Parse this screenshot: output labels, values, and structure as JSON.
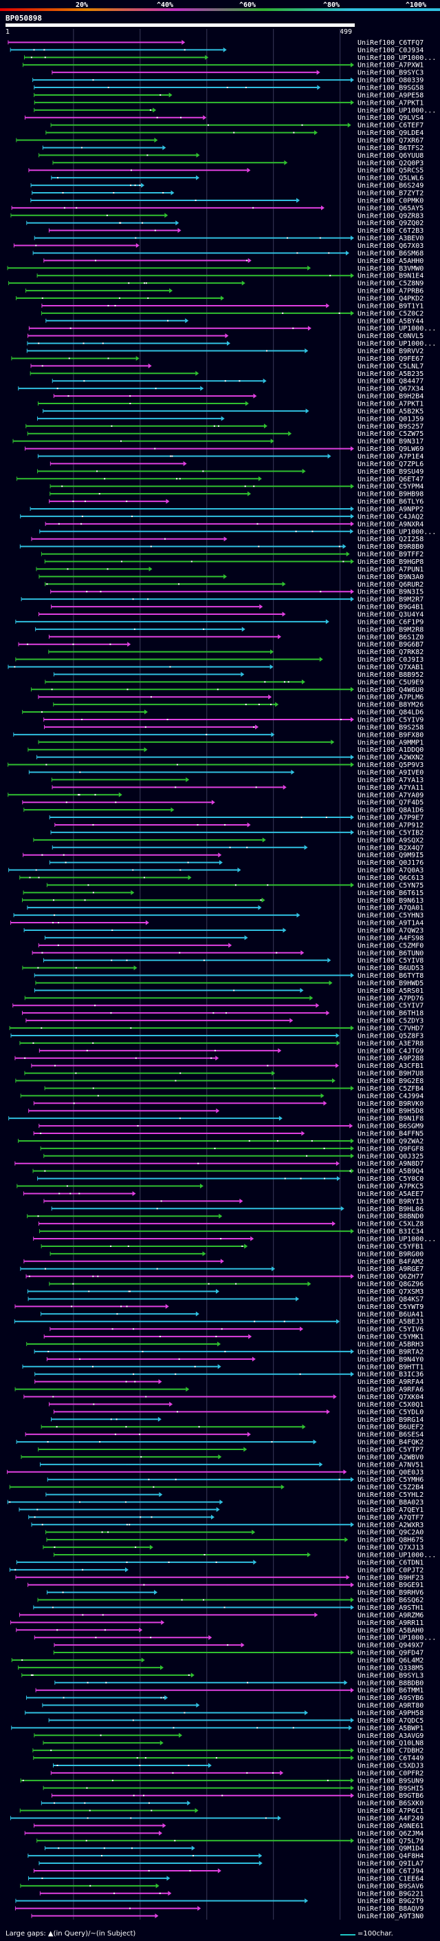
{
  "chart_data": {
    "type": "alignment-overview",
    "title": "BP050898",
    "query_start": 1,
    "query_end": 499,
    "colorbar_ticks": [
      "20%",
      "^40%",
      "^60%",
      "^80%",
      "^100%"
    ],
    "colors": {
      "background": "#000018",
      "pink": "#e040e0",
      "green": "#30c030",
      "cyan": "#30c0e0",
      "query_bar": "#ffffff",
      "label": "#ffffff"
    },
    "labels": [
      "UniRef100_C6TFQ7",
      "UniRef100_C0J934",
      "UniRef100_UP1000...",
      "UniRef100_A7PXW1",
      "UniRef100_B9SYC3",
      "UniRef100_O80339",
      "UniRef100_B9SG58",
      "UniRef100_A9PE58",
      "UniRef100_A7PKT1",
      "UniRef100_UP1000...",
      "UniRef100_Q9LVS4",
      "UniRef100_C6TEF7",
      "UniRef100_Q9LDE4",
      "UniRef100_Q7XR67",
      "UniRef100_B6TFS2",
      "UniRef100_Q6YUU8",
      "UniRef100_Q2Q0P3",
      "UniRef100_Q5RCS5",
      "UniRef100_Q5LWL6",
      "UniRef100_B6S249",
      "UniRef100_B7ZYT2",
      "UniRef100_C0PMK0",
      "UniRef100_Q65AY5",
      "UniRef100_Q9ZR83",
      "UniRef100_Q9ZQ02",
      "UniRef100_C6T2B3",
      "UniRef100_A3BEV0",
      "UniRef100_Q67X03",
      "UniRef100_B6SM68",
      "UniRef100_A5AHH0",
      "UniRef100_B3VMW0",
      "UniRef100_B9N1E4",
      "UniRef100_C5Z8N9",
      "UniRef100_A7PRB6",
      "UniRef100_Q4PKD2",
      "UniRef100_B9T1Y1",
      "UniRef100_C5Z0C2",
      "UniRef100_A5BY44",
      "UniRef100_UP1000...",
      "UniRef100_C0NVL5",
      "UniRef100_UP1000...",
      "UniRef100_B9RVV2",
      "UniRef100_Q9FE67",
      "UniRef100_C5LNL7",
      "UniRef100_A5B235",
      "UniRef100_Q84477",
      "UniRef100_Q67X34",
      "UniRef100_B9H2B4",
      "UniRef100_A7PKT1",
      "UniRef100_A5B2K5",
      "UniRef100_Q01J59",
      "UniRef100_B9S257",
      "UniRef100_C5ZW75",
      "UniRef100_B9N317",
      "UniRef100_Q9LW69",
      "UniRef100_A7P1E4",
      "UniRef100_Q7ZPL6",
      "UniRef100_B9SU49",
      "UniRef100_Q6ET47",
      "UniRef100_C5YPM4",
      "UniRef100_B9HB98",
      "UniRef100_B6TLY6",
      "UniRef100_A9NPP2",
      "UniRef100_C4JAQ2",
      "UniRef100_A9NXR4",
      "UniRef100_UP1000...",
      "UniRef100_Q2I258",
      "UniRef100_B9R8B0",
      "UniRef100_B9TFF2",
      "UniRef100_B9HGP8",
      "UniRef100_A7PUN1",
      "UniRef100_B9N3A0",
      "UniRef100_Q6RUR2",
      "UniRef100_B9N3I5",
      "UniRef100_B9M2R7",
      "UniRef100_B9G4B1",
      "UniRef100_Q3U4Y4",
      "UniRef100_C6F1P9",
      "UniRef100_B9M2R8",
      "UniRef100_B6S1Z0",
      "UniRef100_B9G6B7",
      "UniRef100_Q7RK82",
      "UniRef100_C0J9I3",
      "UniRef100_Q7XAB1",
      "UniRef100_B8B952",
      "UniRef100_C5U9E9",
      "UniRef100_Q4W6U0",
      "UniRef100_A7PLM6",
      "UniRef100_B8YM26",
      "UniRef100_Q84LD6",
      "UniRef100_C5YIV9",
      "UniRef100_B9S258",
      "UniRef100_B9FX80",
      "UniRef100_A9MMP1",
      "UniRef100_A1DDQ0",
      "UniRef100_A2WXN2",
      "UniRef100_Q5P9V3",
      "UniRef100_A9IVE0",
      "UniRef100_A7YA13",
      "UniRef100_A7YA11",
      "UniRef100_A7YA09",
      "UniRef100_Q7F4D5",
      "UniRef100_Q8A1D6",
      "UniRef100_A7P9E7",
      "UniRef100_A7P912",
      "UniRef100_C5YIB2",
      "UniRef100_A9SQX2",
      "UniRef100_B2X4Q7",
      "UniRef100_Q9M9I5",
      "UniRef100_Q0J176",
      "UniRef100_A7Q0A3",
      "UniRef100_Q6C613",
      "UniRef100_C5YN75",
      "UniRef100_B6T615",
      "UniRef100_B9N613",
      "UniRef100_A7QA01",
      "UniRef100_C5YHN3",
      "UniRef100_A9T1A4",
      "UniRef100_A7QW23",
      "UniRef100_A4FS98",
      "UniRef100_C5ZMF0",
      "UniRef100_B6TUN0",
      "UniRef100_C5YIV8",
      "UniRef100_B6UD53",
      "UniRef100_B6TYT8",
      "UniRef100_B9HWD5",
      "UniRef100_A5RS01",
      "UniRef100_A7PD76",
      "UniRef100_C5YIV7",
      "UniRef100_B6TH18",
      "UniRef100_C5ZDY3",
      "UniRef100_C7VHD7",
      "UniRef100_Q5Z8F3",
      "UniRef100_A3E7R8",
      "UniRef100_C4JTG9",
      "UniRef100_A9P288",
      "UniRef100_A3CFB1",
      "UniRef100_B9H7U8",
      "UniRef100_B9G2E8",
      "UniRef100_C5ZFB4",
      "UniRef100_C4J994",
      "UniRef100_B9RVK0",
      "UniRef100_B9H5D8",
      "UniRef100_B9N1F8",
      "UniRef100_B6SGM9",
      "UniRef100_B4FFN5",
      "UniRef100_Q9ZWA2",
      "UniRef100_Q9FGF8",
      "UniRef100_Q0J325",
      "UniRef100_A9N8D7",
      "UniRef100_A5B9Q4",
      "UniRef100_C5Y0C0",
      "UniRef100_A7PKC5",
      "UniRef100_A5AEE7",
      "UniRef100_B9RYI3",
      "UniRef100_B9HL06",
      "UniRef100_B8BND0",
      "UniRef100_C5XLZ8",
      "UniRef100_B3IC34",
      "UniRef100_UP1000...",
      "UniRef100_C5YFB1",
      "UniRef100_B9RG00",
      "UniRef100_B4FAM2",
      "UniRef100_A9RGE7",
      "UniRef100_Q6ZH77",
      "UniRef100_Q8GZ96",
      "UniRef100_Q7XSM3",
      "UniRef100_Q84KS7",
      "UniRef100_C5YWT9",
      "UniRef100_B6UA41",
      "UniRef100_A5BEJ3",
      "UniRef100_C5YIV6",
      "UniRef100_C5YMK1",
      "UniRef100_A5BRH3",
      "UniRef100_B9RTA2",
      "UniRef100_B9N4Y0",
      "UniRef100_B9HTT1",
      "UniRef100_B3IC36",
      "UniRef100_A9RFA4",
      "UniRef100_A9RFA6",
      "UniRef100_Q7XK04",
      "UniRef100_C5X0Q1",
      "UniRef100_C5YDL0",
      "UniRef100_B9RG14",
      "UniRef100_B6UEF2",
      "UniRef100_B6SES4",
      "UniRef100_B4FQK2",
      "UniRef100_C5YTP7",
      "UniRef100_A2WBV0",
      "UniRef100_A7NV51",
      "UniRef100_Q0E0J3",
      "UniRef100_C5YMH6",
      "UniRef100_C5Z2B4",
      "UniRef100_C5YHL2",
      "UniRef100_B8A023",
      "UniRef100_A7QEY1",
      "UniRef100_A7QTF7",
      "UniRef100_A2WXR3",
      "UniRef100_Q9C2A0",
      "UniRef100_Q8H675",
      "UniRef100_Q7XJ13",
      "UniRef100_UP1000...",
      "UniRef100_C6TDN1",
      "UniRef100_C0PJT2",
      "UniRef100_B9HF23",
      "UniRef100_B9GE91",
      "UniRef100_B9RHV6",
      "UniRef100_B6SQ62",
      "UniRef100_A9STH1",
      "UniRef100_A9RZM6",
      "UniRef100_A9RR11",
      "UniRef100_A5BAH0",
      "UniRef100_UP1000...",
      "UniRef100_Q949X7",
      "UniRef100_Q9FD47",
      "UniRef100_Q6L4M2",
      "UniRef100_Q338M5",
      "UniRef100_B9SYL3",
      "UniRef100_B8BDB0",
      "UniRef100_B6TMM1",
      "UniRef100_A9SYB6",
      "UniRef100_A9RT80",
      "UniRef100_A9PH58",
      "UniRef100_A7QDC5",
      "UniRef100_A5BWP1",
      "UniRef100_A3AVG9",
      "UniRef100_Q10LN8",
      "UniRef100_C7DBH2",
      "UniRef100_C6T449",
      "UniRef100_C5XDJ3",
      "UniRef100_C0PFR2",
      "UniRef100_B9SUN9",
      "UniRef100_B9SHI5",
      "UniRef100_B9GTB6",
      "UniRef100_B6SXK0",
      "UniRef100_A7P6C1",
      "UniRef100_A4F249",
      "UniRef100_A9NE61",
      "UniRef100_Q6ZJM4",
      "UniRef100_Q75L79",
      "UniRef100_Q9M1D4",
      "UniRef100_Q4F8H4",
      "UniRef100_Q9ILA7",
      "UniRef100_C6TJ94",
      "UniRef100_C1EE64",
      "UniRef100_B9SAV6",
      "UniRef100_B9G221",
      "UniRef100_B9G2T9",
      "UniRef100_B8AQV9",
      "UniRef100_A9T3N0"
    ],
    "footer": {
      "left_text": "Large gaps: ▲(in Query)/~(in Subject)",
      "right_text": "=100char."
    }
  }
}
